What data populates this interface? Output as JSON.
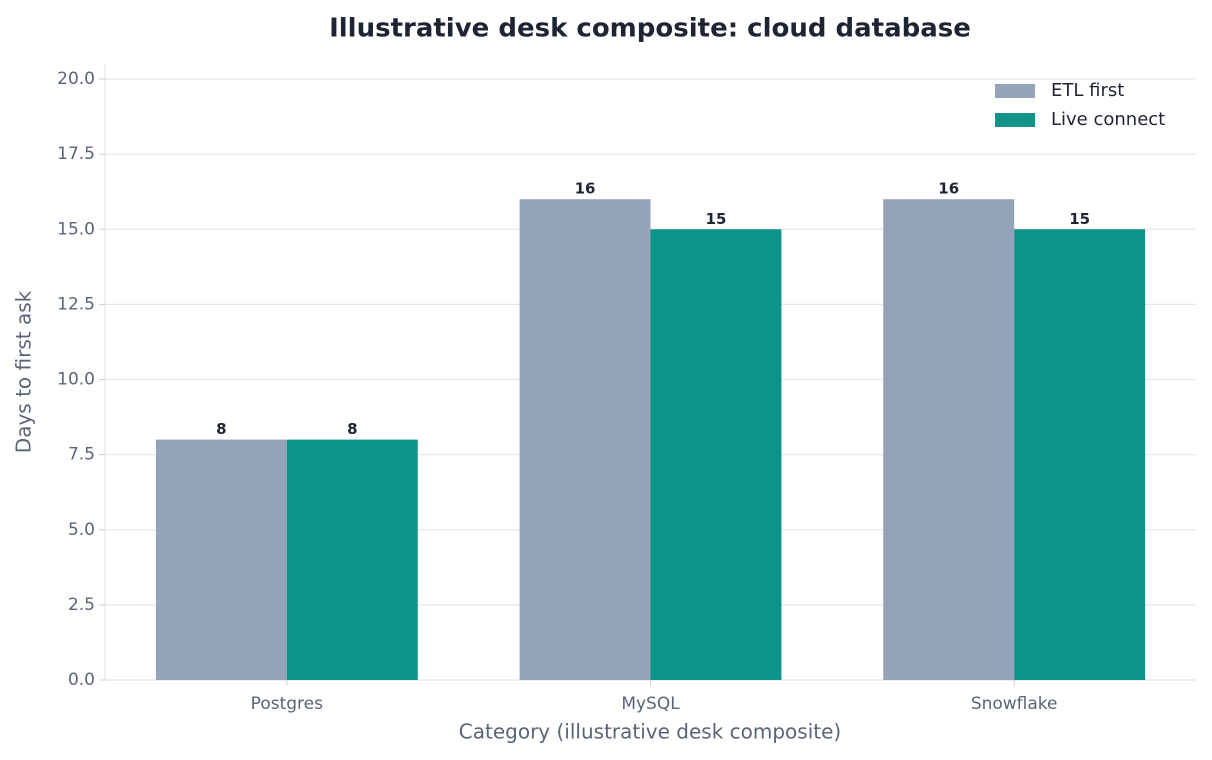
{
  "chart_data": {
    "type": "bar",
    "title": "Illustrative desk composite: cloud database",
    "x_label": "Category (illustrative desk composite)",
    "y_label": "Days to first ask",
    "categories": [
      "Postgres",
      "MySQL",
      "Snowflake"
    ],
    "series": [
      {
        "name": "ETL first",
        "color": "#94a3b8",
        "values": [
          8,
          16,
          16
        ]
      },
      {
        "name": "Live connect",
        "color": "#0d9488",
        "values": [
          8,
          15,
          15
        ]
      }
    ],
    "ylim": [
      0,
      20.5
    ],
    "yticks": [
      {
        "value": 0,
        "label": "0.0"
      },
      2.5,
      {
        "value": 5,
        "label": "5.0"
      },
      7.5,
      {
        "value": 10,
        "label": "10.0"
      },
      12.5,
      {
        "value": 15,
        "label": "15.0"
      },
      17.5,
      {
        "value": 20,
        "label": "20.0"
      }
    ],
    "grid": true,
    "legend": "upper right"
  }
}
